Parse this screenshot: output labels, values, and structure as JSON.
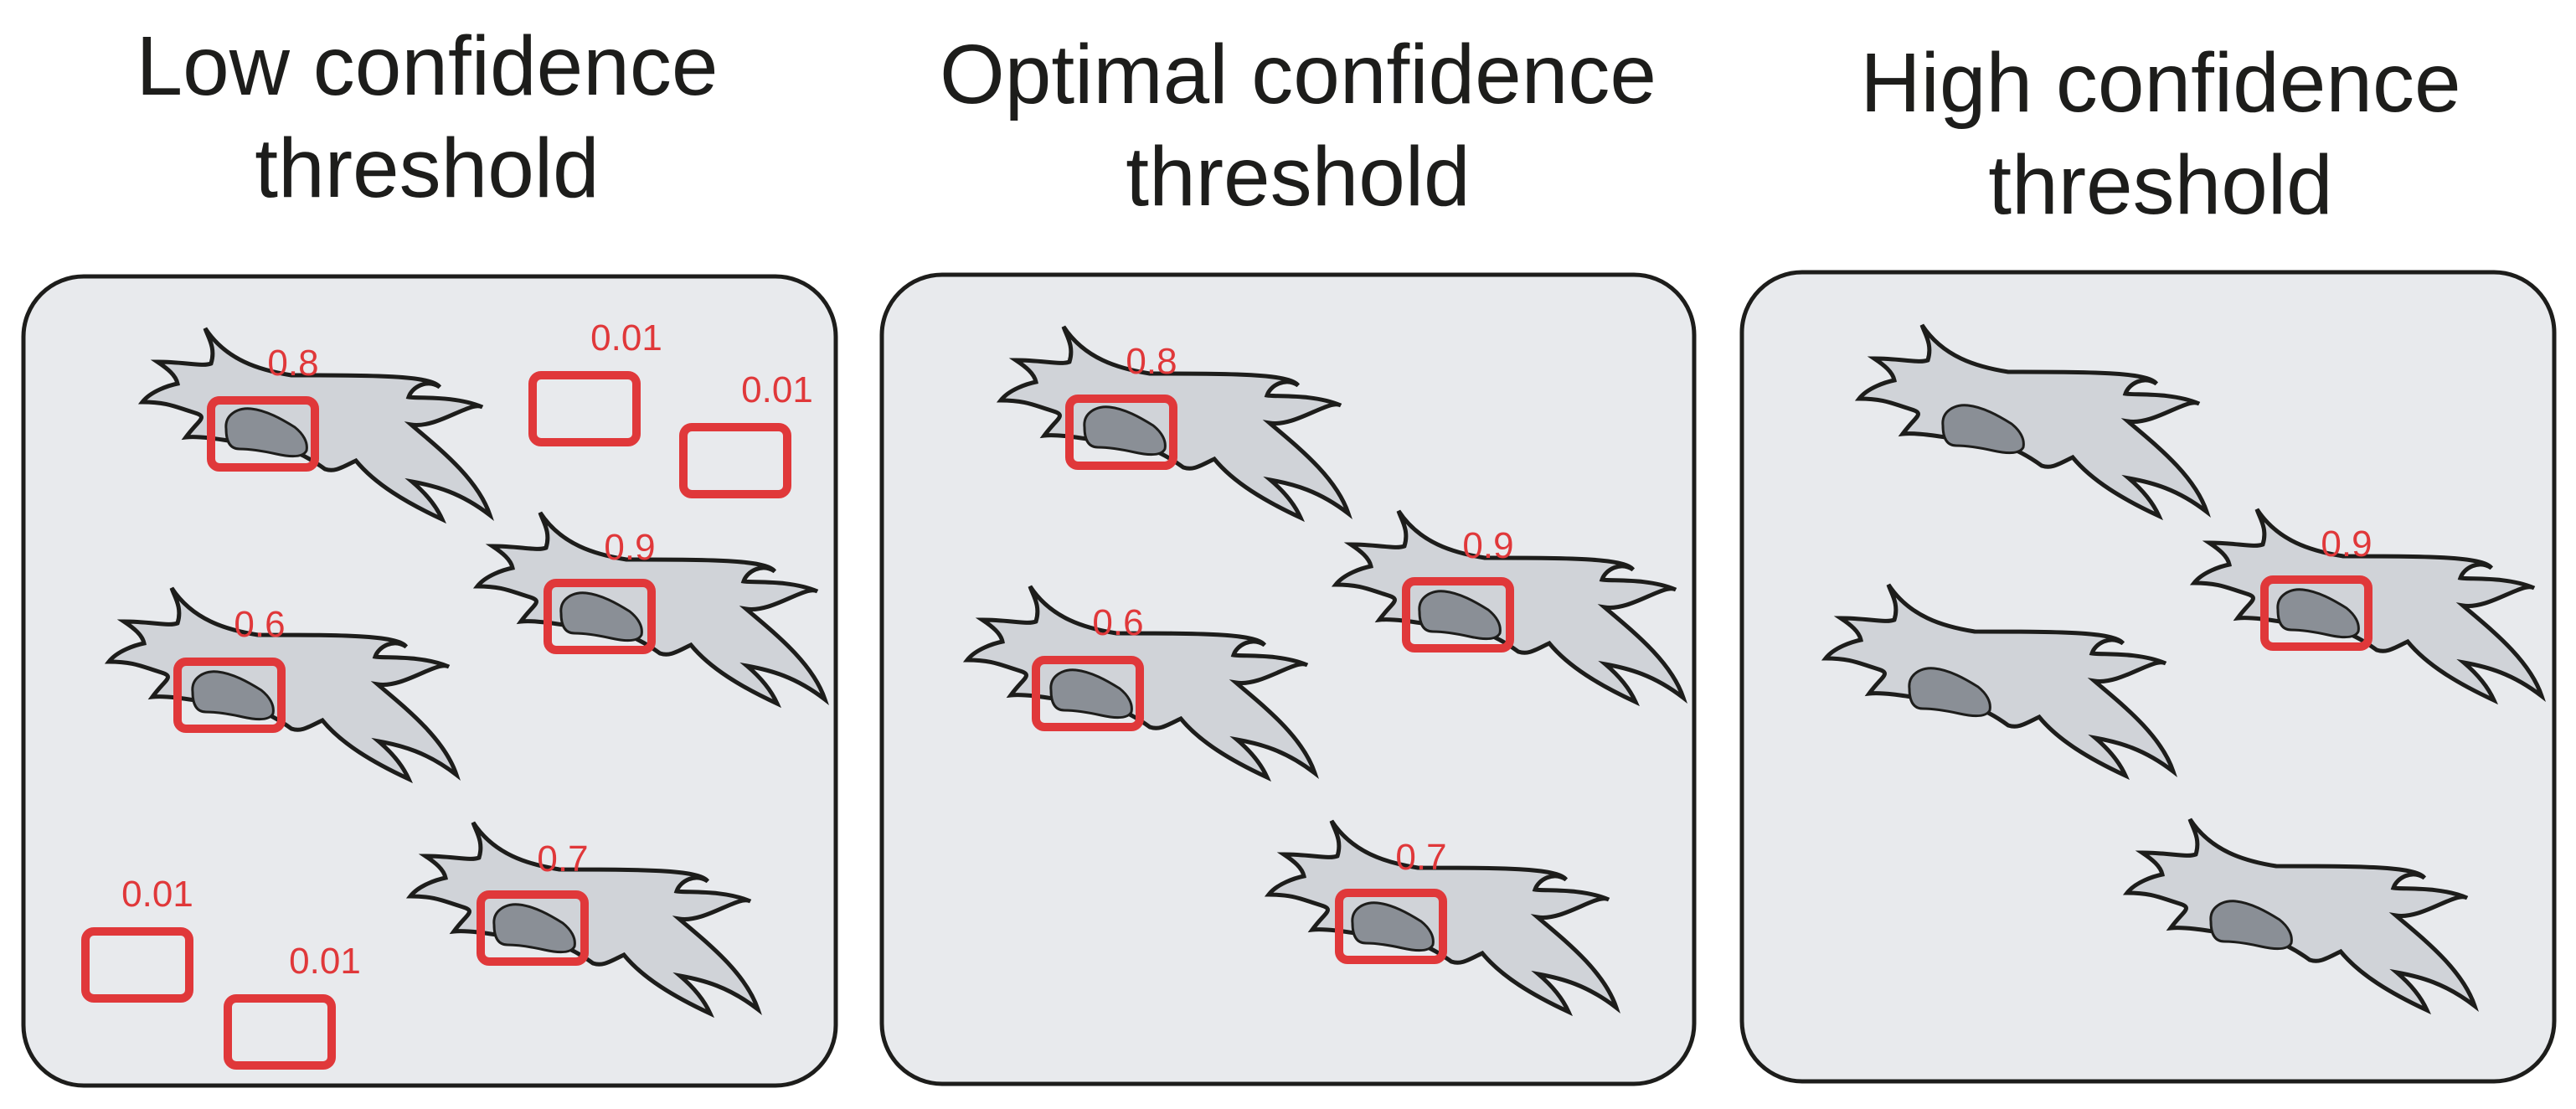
{
  "panels": [
    {
      "id": "low",
      "title_line1": "Low confidence",
      "title_line2": "threshold",
      "cells": [
        {
          "id": "cell-a",
          "score": "0.8",
          "boxed": true
        },
        {
          "id": "cell-b",
          "score": "0.9",
          "boxed": true
        },
        {
          "id": "cell-c",
          "score": "0.6",
          "boxed": true
        },
        {
          "id": "cell-d",
          "score": "0.7",
          "boxed": true
        }
      ],
      "false_positives": [
        "0.01",
        "0.01",
        "0.01",
        "0.01"
      ]
    },
    {
      "id": "optimal",
      "title_line1": "Optimal confidence",
      "title_line2": "threshold",
      "cells": [
        {
          "id": "cell-a",
          "score": "0.8",
          "boxed": true
        },
        {
          "id": "cell-b",
          "score": "0.9",
          "boxed": true
        },
        {
          "id": "cell-c",
          "score": "0.6",
          "boxed": true
        },
        {
          "id": "cell-d",
          "score": "0.7",
          "boxed": true
        }
      ],
      "false_positives": []
    },
    {
      "id": "high",
      "title_line1": "High confidence",
      "title_line2": "threshold",
      "cells": [
        {
          "id": "cell-a",
          "score": "",
          "boxed": false
        },
        {
          "id": "cell-b",
          "score": "0.9",
          "boxed": true
        },
        {
          "id": "cell-c",
          "score": "",
          "boxed": false
        },
        {
          "id": "cell-d",
          "score": "",
          "boxed": false
        }
      ],
      "false_positives": []
    }
  ],
  "colors": {
    "panel_fill": "#e8eaed",
    "panel_stroke": "#1d1d1b",
    "cell_fill": "#d0d3d8",
    "nucleus_fill": "#8a8f96",
    "box_stroke": "#e0383a",
    "score_text": "#e0383a"
  }
}
